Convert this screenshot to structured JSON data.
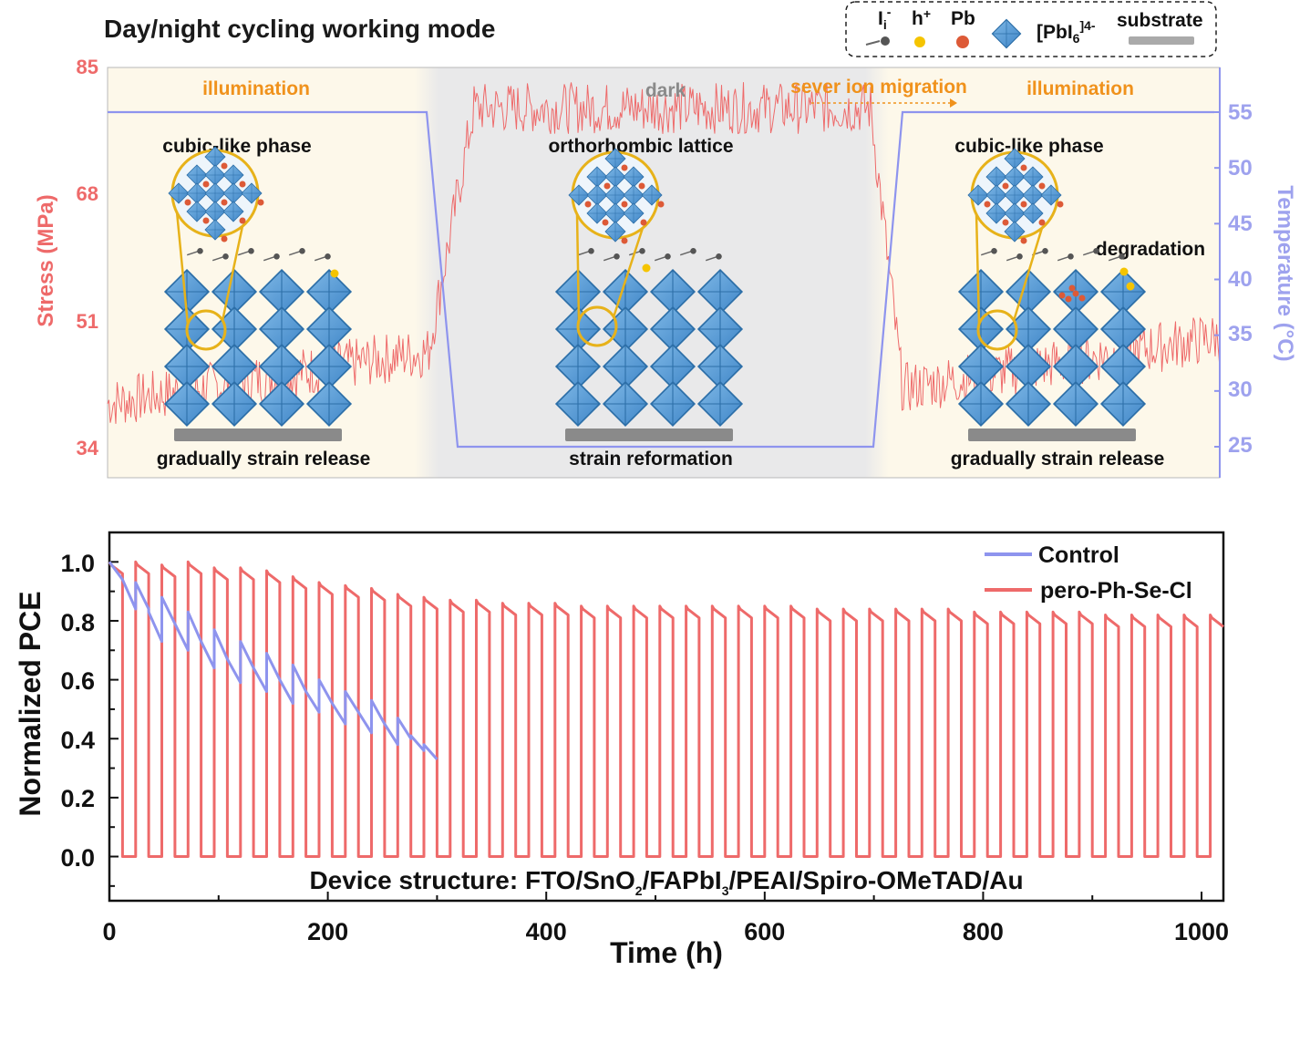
{
  "top_panel": {
    "title": "Day/night cycling working mode",
    "legend": {
      "items": [
        {
          "label": "I",
          "sub": "i",
          "sup": "-",
          "icon": "iodide-interstitial-icon"
        },
        {
          "label": "h",
          "sup": "+",
          "icon": "hole-icon"
        },
        {
          "label": "Pb",
          "icon": "lead-icon"
        },
        {
          "label": "[PbI",
          "sub": "6",
          "sup": "]4-",
          "icon": "octahedron-icon"
        },
        {
          "label": "substrate",
          "icon": "substrate-icon"
        }
      ]
    },
    "phase_labels": {
      "left": "illumination",
      "middle": "dark",
      "migration": "sever ion migration",
      "right": "illumination"
    },
    "structure_labels": {
      "left_top": "cubic-like phase",
      "middle_top": "orthorhombic lattice",
      "right_top": "cubic-like phase",
      "right_side": "degradation",
      "left_bottom": "gradually strain release",
      "middle_bottom": "strain reformation",
      "right_bottom": "gradually strain release"
    },
    "left_axis": {
      "label": "Stress (MPa)",
      "ticks": [
        "85",
        "68",
        "51",
        "34"
      ]
    },
    "right_axis": {
      "label": "Temperature (°C)",
      "ticks": [
        "55",
        "50",
        "45",
        "40",
        "35",
        "30",
        "25"
      ]
    },
    "colors": {
      "stress": "#ee6a6a",
      "temperature": "#8e94ee",
      "illumination_bg": "#fdf8ea",
      "dark_bg": "#e9e9ea",
      "accent": "#f0921c"
    }
  },
  "chart_data": {
    "type": "line",
    "title": "",
    "xlabel": "Time (h)",
    "ylabel": "Normalized PCE",
    "xlim": [
      0,
      1020
    ],
    "ylim": [
      -0.15,
      1.1
    ],
    "x_ticks": [
      "0",
      "200",
      "400",
      "600",
      "800",
      "1000"
    ],
    "y_ticks": [
      "0.0",
      "0.2",
      "0.4",
      "0.6",
      "0.8",
      "1.0"
    ],
    "cycle_period_h": 24,
    "day_h": 12,
    "annotation": "Device structure: FTO/SnO2/FAPbI3/PEAI/Spiro-OMeTAD/Au",
    "series": [
      {
        "name": "Control",
        "color": "#8e94ee",
        "cycles": [
          {
            "start": 0,
            "from": 1.0,
            "to": 0.94
          },
          {
            "start": 12,
            "from": 0.94,
            "to": 0.84
          },
          {
            "start": 24,
            "from": 0.93,
            "to": 0.84
          },
          {
            "start": 36,
            "from": 0.83,
            "to": 0.73
          },
          {
            "start": 48,
            "from": 0.88,
            "to": 0.79
          },
          {
            "start": 60,
            "from": 0.79,
            "to": 0.7
          },
          {
            "start": 72,
            "from": 0.83,
            "to": 0.73
          },
          {
            "start": 84,
            "from": 0.73,
            "to": 0.64
          },
          {
            "start": 96,
            "from": 0.77,
            "to": 0.67
          },
          {
            "start": 108,
            "from": 0.67,
            "to": 0.59
          },
          {
            "start": 120,
            "from": 0.73,
            "to": 0.64
          },
          {
            "start": 132,
            "from": 0.64,
            "to": 0.56
          },
          {
            "start": 144,
            "from": 0.69,
            "to": 0.6
          },
          {
            "start": 156,
            "from": 0.6,
            "to": 0.52
          },
          {
            "start": 168,
            "from": 0.65,
            "to": 0.56
          },
          {
            "start": 180,
            "from": 0.56,
            "to": 0.49
          },
          {
            "start": 192,
            "from": 0.6,
            "to": 0.52
          },
          {
            "start": 204,
            "from": 0.52,
            "to": 0.45
          },
          {
            "start": 216,
            "from": 0.56,
            "to": 0.49
          },
          {
            "start": 228,
            "from": 0.49,
            "to": 0.42
          },
          {
            "start": 240,
            "from": 0.53,
            "to": 0.45
          },
          {
            "start": 252,
            "from": 0.45,
            "to": 0.38
          },
          {
            "start": 264,
            "from": 0.47,
            "to": 0.4
          },
          {
            "start": 276,
            "from": 0.41,
            "to": 0.36
          },
          {
            "start": 288,
            "from": 0.38,
            "to": 0.33
          }
        ]
      },
      {
        "name": "pero-Ph-Se-Cl",
        "color": "#ee6a6a",
        "day_peaks": [
          1.0,
          1.0,
          0.99,
          1.0,
          0.98,
          0.98,
          0.97,
          0.95,
          0.93,
          0.92,
          0.91,
          0.89,
          0.88,
          0.87,
          0.87,
          0.86,
          0.86,
          0.86,
          0.85,
          0.85,
          0.85,
          0.85,
          0.85,
          0.85,
          0.85,
          0.85,
          0.85,
          0.84,
          0.84,
          0.84,
          0.84,
          0.84,
          0.84,
          0.83,
          0.83,
          0.83,
          0.83,
          0.83,
          0.82,
          0.82,
          0.82,
          0.82,
          0.82,
          0.82
        ],
        "day_drop": 0.04,
        "night_value": 0.0
      }
    ]
  }
}
